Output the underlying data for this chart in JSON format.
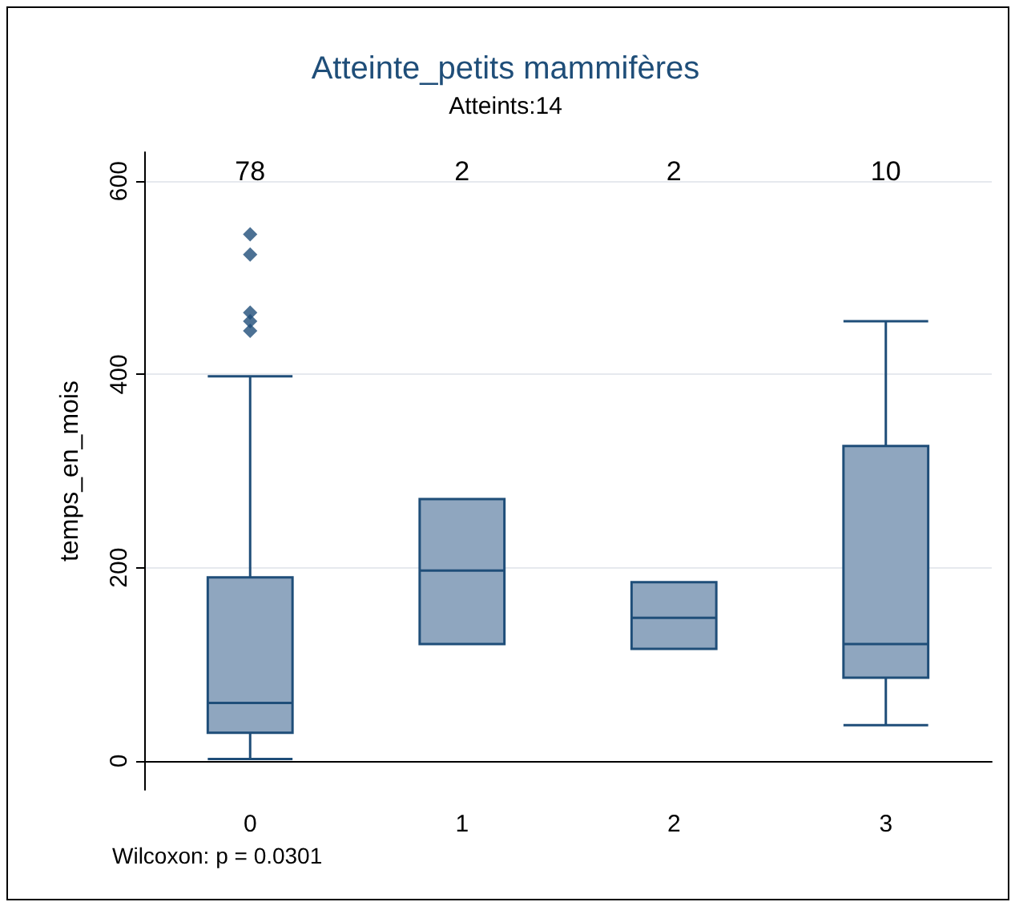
{
  "chart_data": {
    "type": "box",
    "title": "Atteinte_petits mammifères",
    "subtitle": "Atteints:14",
    "ylabel": "temps_en_mois",
    "categories": [
      "0",
      "1",
      "2",
      "3"
    ],
    "boxes": [
      {
        "low": 2,
        "q1": 29,
        "median": 60,
        "q3": 190,
        "high": 398,
        "outliers": [
          545,
          524,
          464,
          455,
          445
        ]
      },
      {
        "low": 121,
        "q1": 121,
        "median": 197,
        "q3": 271,
        "high": 271
      },
      {
        "low": 116,
        "q1": 116,
        "median": 148,
        "q3": 185,
        "high": 185
      },
      {
        "low": 37,
        "q1": 86,
        "median": 121,
        "q3": 326,
        "high": 455
      }
    ],
    "color": "#8fa6bf",
    "ylim": [
      -30,
      630
    ],
    "yticks": [
      0,
      200,
      400,
      600
    ],
    "grid": "y",
    "marker": "diamond",
    "annotations": [
      "78",
      "2",
      "2",
      "10",
      "Wilcoxon: p = 0.0301"
    ]
  }
}
